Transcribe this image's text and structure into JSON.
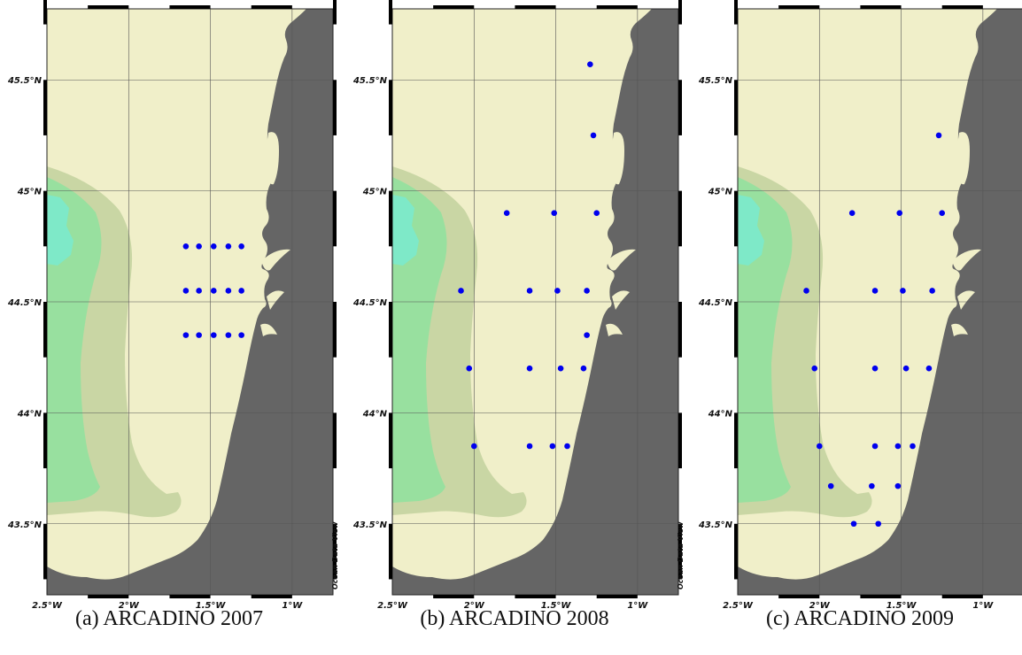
{
  "map": {
    "lat_labels": [
      "45.5°N",
      "45°N",
      "44.5°N",
      "44°N",
      "43.5°N"
    ],
    "lat_values": [
      45.5,
      45.0,
      44.5,
      44.0,
      43.5
    ],
    "lon_labels": [
      "2.5°W",
      "2°W",
      "1.5°W",
      "1°W"
    ],
    "lon_values": [
      -2.5,
      -2.0,
      -1.5,
      -1.0
    ],
    "lon_range": [
      -2.5,
      -0.75
    ],
    "lat_range": [
      43.18,
      45.82
    ],
    "credit": "Ocean Data View",
    "colors": {
      "land": "#656565",
      "shelf": "#f0efc9",
      "slope": "#c9d6a4",
      "deep": "#98e09f",
      "abyss": "#7ee9c8",
      "station": "#0000ee",
      "grid": "#555555"
    }
  },
  "panels": [
    {
      "caption": "(a) ARCADINO 2007",
      "stations": [
        [
          -1.65,
          44.75
        ],
        [
          -1.57,
          44.75
        ],
        [
          -1.48,
          44.75
        ],
        [
          -1.39,
          44.75
        ],
        [
          -1.31,
          44.75
        ],
        [
          -1.65,
          44.55
        ],
        [
          -1.57,
          44.55
        ],
        [
          -1.48,
          44.55
        ],
        [
          -1.39,
          44.55
        ],
        [
          -1.31,
          44.55
        ],
        [
          -1.65,
          44.35
        ],
        [
          -1.57,
          44.35
        ],
        [
          -1.48,
          44.35
        ],
        [
          -1.39,
          44.35
        ],
        [
          -1.31,
          44.35
        ]
      ]
    },
    {
      "caption": "(b) ARCADINO 2008",
      "stations": [
        [
          -1.29,
          45.57
        ],
        [
          -1.27,
          45.25
        ],
        [
          -1.8,
          44.9
        ],
        [
          -1.51,
          44.9
        ],
        [
          -1.25,
          44.9
        ],
        [
          -2.08,
          44.55
        ],
        [
          -1.66,
          44.55
        ],
        [
          -1.49,
          44.55
        ],
        [
          -1.31,
          44.55
        ],
        [
          -1.31,
          44.35
        ],
        [
          -2.03,
          44.2
        ],
        [
          -1.66,
          44.2
        ],
        [
          -1.47,
          44.2
        ],
        [
          -1.33,
          44.2
        ],
        [
          -2.0,
          43.85
        ],
        [
          -1.66,
          43.85
        ],
        [
          -1.52,
          43.85
        ],
        [
          -1.43,
          43.85
        ]
      ]
    },
    {
      "caption": "(c) ARCADINO 2009",
      "stations": [
        [
          -1.27,
          45.25
        ],
        [
          -1.8,
          44.9
        ],
        [
          -1.51,
          44.9
        ],
        [
          -1.25,
          44.9
        ],
        [
          -2.08,
          44.55
        ],
        [
          -1.66,
          44.55
        ],
        [
          -1.49,
          44.55
        ],
        [
          -1.31,
          44.55
        ],
        [
          -2.03,
          44.2
        ],
        [
          -1.66,
          44.2
        ],
        [
          -1.47,
          44.2
        ],
        [
          -1.33,
          44.2
        ],
        [
          -2.0,
          43.85
        ],
        [
          -1.66,
          43.85
        ],
        [
          -1.52,
          43.85
        ],
        [
          -1.43,
          43.85
        ],
        [
          -1.93,
          43.67
        ],
        [
          -1.68,
          43.67
        ],
        [
          -1.52,
          43.67
        ],
        [
          -1.79,
          43.5
        ],
        [
          -1.64,
          43.5
        ]
      ]
    }
  ]
}
